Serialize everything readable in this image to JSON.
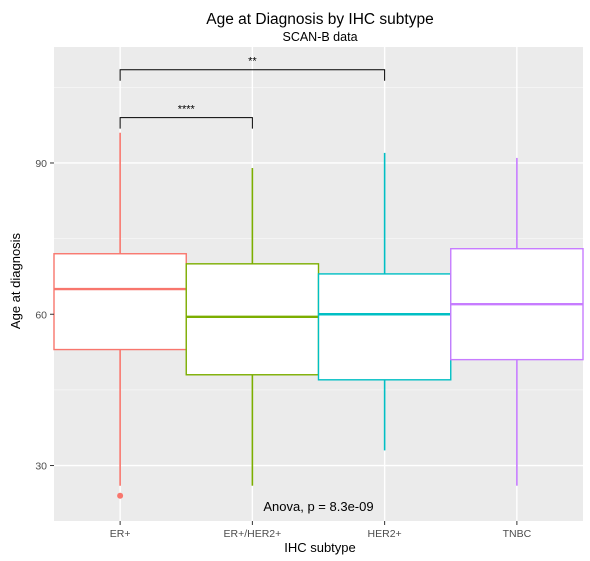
{
  "chart_data": {
    "type": "boxplot",
    "title": "Age at Diagnosis by IHC subtype",
    "subtitle": "SCAN-B data",
    "xlabel": "IHC subtype",
    "ylabel": "Age at diagnosis",
    "ylim": [
      19,
      113
    ],
    "y_ticks": [
      30,
      60,
      90
    ],
    "grid": true,
    "legend": "none",
    "categories": [
      "ER+",
      "ER+/HER2+",
      "HER2+",
      "TNBC"
    ],
    "boxes": [
      {
        "category": "ER+",
        "min": 26,
        "q1": 53,
        "median": 65,
        "q3": 72,
        "max": 96,
        "outliers": [
          24
        ],
        "color": "#F8766D"
      },
      {
        "category": "ER+/HER2+",
        "min": 26,
        "q1": 48,
        "median": 59.5,
        "q3": 70,
        "max": 89,
        "outliers": [],
        "color": "#7CAE00"
      },
      {
        "category": "HER2+",
        "min": 33,
        "q1": 47,
        "median": 60,
        "q3": 68,
        "max": 92,
        "outliers": [],
        "color": "#00BFC4"
      },
      {
        "category": "TNBC",
        "min": 26,
        "q1": 51,
        "median": 62,
        "q3": 73,
        "max": 91,
        "outliers": [],
        "color": "#C77CFF"
      }
    ],
    "significance": [
      {
        "from": "ER+",
        "to": "HER2+",
        "y": 108.5,
        "label": "**"
      },
      {
        "from": "ER+",
        "to": "ER+/HER2+",
        "y": 99,
        "label": "****"
      }
    ],
    "annotation": {
      "text": "Anova, p = 8.3e-09",
      "x_category_index": 1.5,
      "y": 22
    }
  }
}
